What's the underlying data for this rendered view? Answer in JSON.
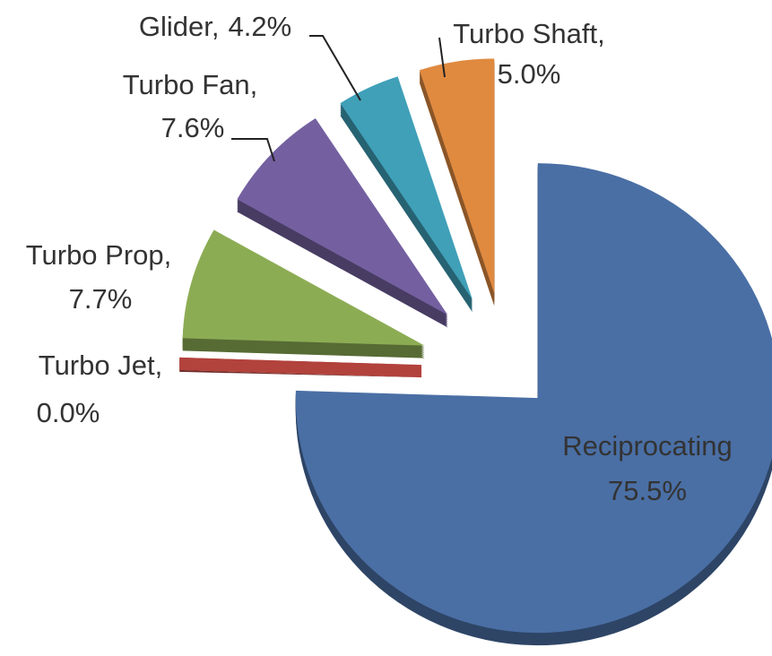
{
  "chart_data": {
    "type": "pie",
    "categories": [
      "Reciprocating",
      "Turbo Jet",
      "Turbo Prop",
      "Turbo Fan",
      "Glider",
      "Turbo Shaft"
    ],
    "values": [
      75.5,
      0.0,
      7.7,
      7.6,
      4.2,
      5.0
    ],
    "value_labels": [
      "75.5%",
      "0.0%",
      "7.7%",
      "7.6%",
      "4.2%",
      "5.0%"
    ],
    "label_separator": ",",
    "colors": [
      "#4a6fa5",
      "#b2423c",
      "#8cac54",
      "#7460a0",
      "#3fa0b8",
      "#e08a40"
    ]
  }
}
